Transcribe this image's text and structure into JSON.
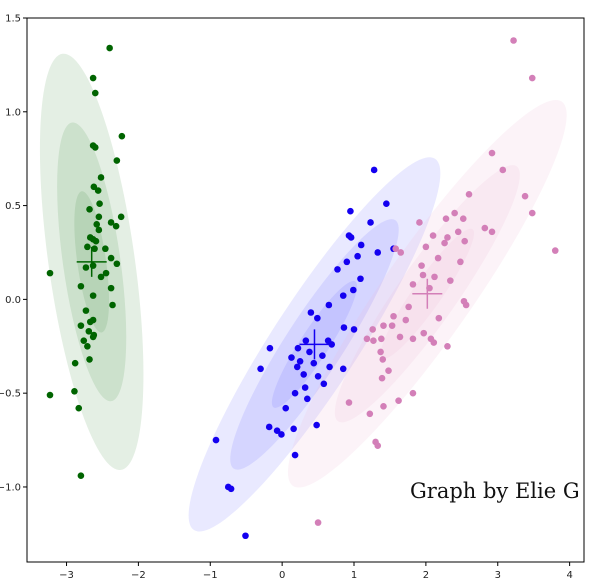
{
  "chart_data": {
    "type": "scatter",
    "title": "",
    "xlabel": "",
    "ylabel": "",
    "xlim": [
      -3.55,
      4.2
    ],
    "ylim": [
      -1.4,
      1.5
    ],
    "grid": false,
    "annotation": "Graph by Elie G",
    "xticks": [
      -3,
      -2,
      -1,
      0,
      1,
      2,
      3,
      4
    ],
    "yticks": [
      1.5,
      1.0,
      0.5,
      0.0,
      -0.5,
      -1.0
    ],
    "xtick_labels": [
      "−3",
      "−2",
      "−1",
      "0",
      "1",
      "2",
      "3",
      "4"
    ],
    "ytick_labels": [
      "1.5",
      "1.0",
      "0.5",
      "0.0",
      "−0.5",
      "−1.0"
    ],
    "series": [
      {
        "color": "#006400",
        "ellipse_color": "#1f7a1f",
        "mean": [
          -2.65,
          0.2
        ],
        "ellipses": [
          {
            "cx": -2.65,
            "cy": 0.2,
            "rx": 0.6,
            "ry": 1.12,
            "angle": -8
          },
          {
            "cx": -2.65,
            "cy": 0.2,
            "rx": 0.4,
            "ry": 0.75,
            "angle": -8
          },
          {
            "cx": -2.65,
            "cy": 0.2,
            "rx": 0.2,
            "ry": 0.38,
            "angle": -8
          }
        ],
        "points": [
          [
            -2.4,
            1.34
          ],
          [
            -2.63,
            1.18
          ],
          [
            -2.6,
            1.1
          ],
          [
            -2.23,
            0.87
          ],
          [
            -2.63,
            0.82
          ],
          [
            -2.6,
            0.81
          ],
          [
            -2.3,
            0.74
          ],
          [
            -2.52,
            0.65
          ],
          [
            -2.62,
            0.6
          ],
          [
            -2.56,
            0.58
          ],
          [
            -2.54,
            0.51
          ],
          [
            -2.68,
            0.48
          ],
          [
            -2.55,
            0.44
          ],
          [
            -2.24,
            0.44
          ],
          [
            -2.38,
            0.41
          ],
          [
            -2.58,
            0.4
          ],
          [
            -2.31,
            0.39
          ],
          [
            -2.55,
            0.37
          ],
          [
            -2.67,
            0.33
          ],
          [
            -2.63,
            0.32
          ],
          [
            -2.59,
            0.31
          ],
          [
            -2.71,
            0.28
          ],
          [
            -2.61,
            0.27
          ],
          [
            -2.46,
            0.27
          ],
          [
            -2.38,
            0.22
          ],
          [
            -2.3,
            0.19
          ],
          [
            -2.63,
            0.18
          ],
          [
            -2.73,
            0.17
          ],
          [
            -2.45,
            0.14
          ],
          [
            -3.23,
            0.14
          ],
          [
            -2.52,
            0.12
          ],
          [
            -2.8,
            0.07
          ],
          [
            -2.38,
            0.06
          ],
          [
            -2.63,
            0.02
          ],
          [
            -2.36,
            -0.03
          ],
          [
            -2.73,
            -0.06
          ],
          [
            -2.63,
            -0.11
          ],
          [
            -2.67,
            -0.12
          ],
          [
            -2.8,
            -0.14
          ],
          [
            -2.69,
            -0.17
          ],
          [
            -2.62,
            -0.19
          ],
          [
            -2.63,
            -0.2
          ],
          [
            -2.76,
            -0.22
          ],
          [
            -2.71,
            -0.25
          ],
          [
            -2.68,
            -0.32
          ],
          [
            -2.88,
            -0.34
          ],
          [
            -2.89,
            -0.49
          ],
          [
            -3.23,
            -0.51
          ],
          [
            -2.83,
            -0.58
          ],
          [
            -2.8,
            -0.94
          ]
        ]
      },
      {
        "color": "#1400f0",
        "ellipse_color": "#4747ff",
        "mean": [
          0.45,
          -0.24
        ],
        "ellipses": [
          {
            "cx": 0.45,
            "cy": -0.24,
            "rx": 0.6,
            "ry": 1.18,
            "angle": 33
          },
          {
            "cx": 0.45,
            "cy": -0.24,
            "rx": 0.4,
            "ry": 0.79,
            "angle": 33
          },
          {
            "cx": 0.45,
            "cy": -0.24,
            "rx": 0.2,
            "ry": 0.4,
            "angle": 33
          }
        ],
        "points": [
          [
            1.28,
            0.69
          ],
          [
            1.45,
            0.51
          ],
          [
            0.95,
            0.47
          ],
          [
            1.23,
            0.41
          ],
          [
            0.93,
            0.34
          ],
          [
            0.96,
            0.33
          ],
          [
            1.1,
            0.29
          ],
          [
            1.55,
            0.27
          ],
          [
            1.33,
            0.25
          ],
          [
            1.05,
            0.23
          ],
          [
            0.9,
            0.2
          ],
          [
            0.77,
            0.16
          ],
          [
            1.09,
            0.11
          ],
          [
            0.99,
            0.05
          ],
          [
            0.85,
            0.02
          ],
          [
            0.65,
            -0.03
          ],
          [
            0.4,
            -0.07
          ],
          [
            0.49,
            -0.1
          ],
          [
            0.86,
            -0.15
          ],
          [
            1.0,
            -0.16
          ],
          [
            0.64,
            -0.22
          ],
          [
            0.33,
            -0.22
          ],
          [
            0.69,
            -0.24
          ],
          [
            0.22,
            -0.26
          ],
          [
            -0.17,
            -0.26
          ],
          [
            0.38,
            -0.28
          ],
          [
            0.13,
            -0.31
          ],
          [
            0.56,
            -0.3
          ],
          [
            0.25,
            -0.33
          ],
          [
            0.44,
            -0.34
          ],
          [
            0.21,
            -0.36
          ],
          [
            0.66,
            -0.36
          ],
          [
            -0.3,
            -0.37
          ],
          [
            0.85,
            -0.37
          ],
          [
            0.3,
            -0.4
          ],
          [
            0.5,
            -0.41
          ],
          [
            0.58,
            -0.45
          ],
          [
            0.32,
            -0.47
          ],
          [
            0.18,
            -0.5
          ],
          [
            0.35,
            -0.53
          ],
          [
            0.05,
            -0.58
          ],
          [
            0.48,
            -0.67
          ],
          [
            -0.18,
            -0.68
          ],
          [
            0.16,
            -0.69
          ],
          [
            -0.07,
            -0.7
          ],
          [
            -0.01,
            -0.72
          ],
          [
            -0.92,
            -0.75
          ],
          [
            0.18,
            -0.83
          ],
          [
            -0.75,
            -1.0
          ],
          [
            -0.71,
            -1.01
          ],
          [
            -0.51,
            -1.26
          ]
        ]
      },
      {
        "color": "#d37fb8",
        "ellipse_color": "#f0bcd6",
        "mean": [
          2.02,
          0.03
        ],
        "ellipses": [
          {
            "cx": 2.02,
            "cy": 0.03,
            "rx": 0.62,
            "ry": 1.25,
            "angle": 35
          },
          {
            "cx": 2.02,
            "cy": 0.03,
            "rx": 0.41,
            "ry": 0.83,
            "angle": 35
          },
          {
            "cx": 2.02,
            "cy": 0.03,
            "rx": 0.2,
            "ry": 0.42,
            "angle": 35
          }
        ],
        "points": [
          [
            3.22,
            1.38
          ],
          [
            3.48,
            1.18
          ],
          [
            2.92,
            0.78
          ],
          [
            3.07,
            0.69
          ],
          [
            2.6,
            0.56
          ],
          [
            3.38,
            0.55
          ],
          [
            2.4,
            0.46
          ],
          [
            3.48,
            0.46
          ],
          [
            2.28,
            0.43
          ],
          [
            2.52,
            0.43
          ],
          [
            1.91,
            0.41
          ],
          [
            2.82,
            0.38
          ],
          [
            2.45,
            0.36
          ],
          [
            2.92,
            0.36
          ],
          [
            2.1,
            0.34
          ],
          [
            2.3,
            0.33
          ],
          [
            2.54,
            0.31
          ],
          [
            2.26,
            0.3
          ],
          [
            2.0,
            0.28
          ],
          [
            1.58,
            0.27
          ],
          [
            1.65,
            0.25
          ],
          [
            3.8,
            0.26
          ],
          [
            2.17,
            0.22
          ],
          [
            2.48,
            0.2
          ],
          [
            1.94,
            0.18
          ],
          [
            1.96,
            0.13
          ],
          [
            2.12,
            0.12
          ],
          [
            2.34,
            0.1
          ],
          [
            1.82,
            0.08
          ],
          [
            2.05,
            0.06
          ],
          [
            2.53,
            -0.01
          ],
          [
            2.56,
            -0.03
          ],
          [
            1.76,
            -0.04
          ],
          [
            2.18,
            -0.1
          ],
          [
            1.55,
            -0.09
          ],
          [
            1.72,
            -0.11
          ],
          [
            1.53,
            -0.14
          ],
          [
            1.41,
            -0.14
          ],
          [
            1.26,
            -0.16
          ],
          [
            1.64,
            -0.2
          ],
          [
            1.38,
            -0.21
          ],
          [
            1.27,
            -0.22
          ],
          [
            1.18,
            -0.21
          ],
          [
            1.97,
            -0.18
          ],
          [
            1.82,
            -0.21
          ],
          [
            2.07,
            -0.21
          ],
          [
            2.11,
            -0.23
          ],
          [
            2.3,
            -0.25
          ],
          [
            1.37,
            -0.28
          ],
          [
            1.4,
            -0.32
          ],
          [
            1.48,
            -0.38
          ],
          [
            1.39,
            -0.42
          ],
          [
            1.82,
            -0.5
          ],
          [
            1.62,
            -0.54
          ],
          [
            0.93,
            -0.55
          ],
          [
            1.41,
            -0.57
          ],
          [
            1.22,
            -0.61
          ],
          [
            1.3,
            -0.76
          ],
          [
            1.33,
            -0.78
          ],
          [
            0.5,
            -1.19
          ]
        ]
      }
    ]
  }
}
